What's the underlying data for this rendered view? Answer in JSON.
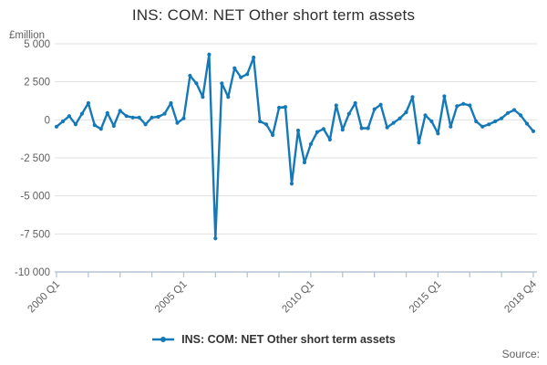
{
  "title": "INS: COM: NET Other short term assets",
  "unit_label": "£million",
  "legend": {
    "label": "INS: COM: NET Other short term assets"
  },
  "source_label": "Source:",
  "colors": {
    "line": "#1579b8",
    "grid": "#e1e1e1",
    "axis": "#b6c3d5",
    "tick_text": "#5f5f5f",
    "title_text": "#2e2e2e"
  },
  "y_axis": {
    "tick_labels": [
      "5 000",
      "2 500",
      "0",
      "-2 500",
      "-5 000",
      "-7 500",
      "-10 000"
    ],
    "tick_values": [
      5000,
      2500,
      0,
      -2500,
      -5000,
      -7500,
      -10000
    ],
    "min": -10000,
    "max": 5000
  },
  "x_axis": {
    "labeled_ticks": [
      {
        "label": "2000 Q1",
        "index": 0
      },
      {
        "label": "2005 Q1",
        "index": 20
      },
      {
        "label": "2010 Q1",
        "index": 40
      },
      {
        "label": "2015 Q1",
        "index": 60
      },
      {
        "label": "2018 Q4",
        "index": 75
      }
    ],
    "minor_tick_every": 5
  },
  "chart_data": {
    "type": "line",
    "title": "INS: COM: NET Other short term assets",
    "ylabel": "£million",
    "ylim": [
      -10000,
      5000
    ],
    "grid": "horizontal",
    "legend_position": "bottom",
    "x": [
      "2000 Q1",
      "2000 Q2",
      "2000 Q3",
      "2000 Q4",
      "2001 Q1",
      "2001 Q2",
      "2001 Q3",
      "2001 Q4",
      "2002 Q1",
      "2002 Q2",
      "2002 Q3",
      "2002 Q4",
      "2003 Q1",
      "2003 Q2",
      "2003 Q3",
      "2003 Q4",
      "2004 Q1",
      "2004 Q2",
      "2004 Q3",
      "2004 Q4",
      "2005 Q1",
      "2005 Q2",
      "2005 Q3",
      "2005 Q4",
      "2006 Q1",
      "2006 Q2",
      "2006 Q3",
      "2006 Q4",
      "2007 Q1",
      "2007 Q2",
      "2007 Q3",
      "2007 Q4",
      "2008 Q1",
      "2008 Q2",
      "2008 Q3",
      "2008 Q4",
      "2009 Q1",
      "2009 Q2",
      "2009 Q3",
      "2009 Q4",
      "2010 Q1",
      "2010 Q2",
      "2010 Q3",
      "2010 Q4",
      "2011 Q1",
      "2011 Q2",
      "2011 Q3",
      "2011 Q4",
      "2012 Q1",
      "2012 Q2",
      "2012 Q3",
      "2012 Q4",
      "2013 Q1",
      "2013 Q2",
      "2013 Q3",
      "2013 Q4",
      "2014 Q1",
      "2014 Q2",
      "2014 Q3",
      "2014 Q4",
      "2015 Q1",
      "2015 Q2",
      "2015 Q3",
      "2015 Q4",
      "2016 Q1",
      "2016 Q2",
      "2016 Q3",
      "2016 Q4",
      "2017 Q1",
      "2017 Q2",
      "2017 Q3",
      "2017 Q4",
      "2018 Q1",
      "2018 Q2",
      "2018 Q3",
      "2018 Q4"
    ],
    "series": [
      {
        "name": "INS: COM: NET Other short term assets",
        "values": [
          -450,
          -100,
          250,
          -300,
          400,
          1100,
          -350,
          -600,
          450,
          -400,
          600,
          250,
          150,
          150,
          -300,
          150,
          200,
          400,
          1100,
          -200,
          100,
          2900,
          2400,
          1500,
          4300,
          -7800,
          2400,
          1500,
          3400,
          2800,
          3000,
          4100,
          -100,
          -300,
          -1000,
          800,
          850,
          -4200,
          -700,
          -2800,
          -1600,
          -800,
          -600,
          -1300,
          950,
          -650,
          400,
          1100,
          -550,
          -550,
          700,
          1000,
          -500,
          -200,
          100,
          500,
          1500,
          -1500,
          300,
          -100,
          -900,
          1550,
          -450,
          900,
          1050,
          950,
          -100,
          -450,
          -300,
          -100,
          100,
          450,
          650,
          300,
          -250,
          -750
        ]
      }
    ]
  }
}
